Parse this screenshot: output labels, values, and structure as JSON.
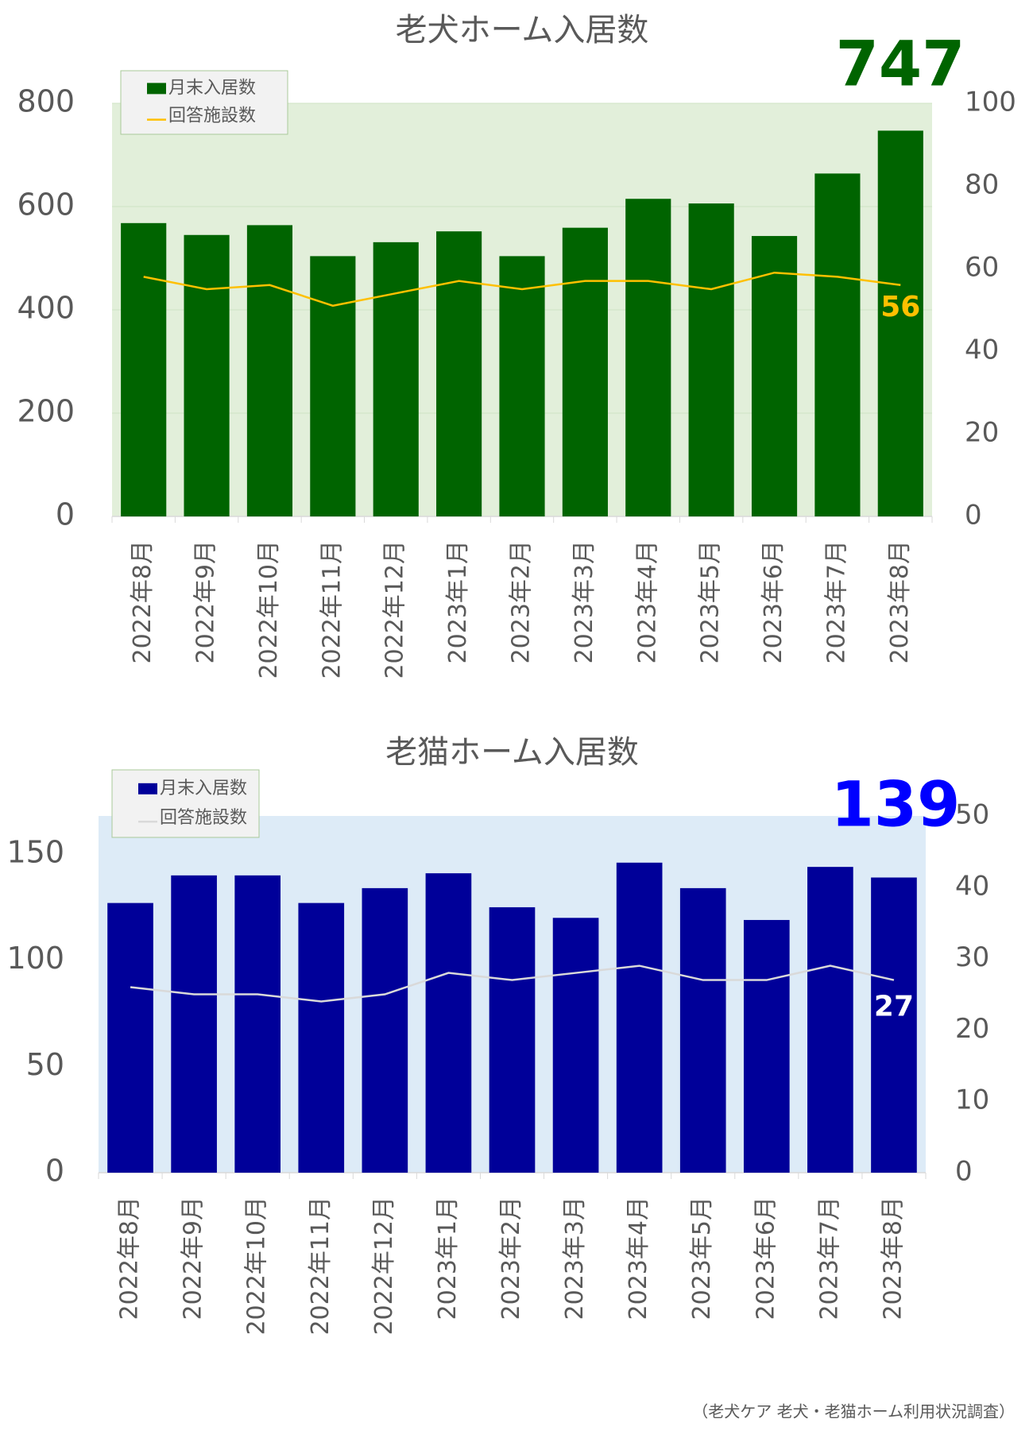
{
  "chart_data": [
    {
      "type": "bar",
      "title": "老犬ホーム入居数",
      "categories": [
        "2022年8月",
        "2022年9月",
        "2022年10月",
        "2022年11月",
        "2022年12月",
        "2023年1月",
        "2023年2月",
        "2023年3月",
        "2023年4月",
        "2023年5月",
        "2023年6月",
        "2023年7月",
        "2023年8月"
      ],
      "series": [
        {
          "name": "月末入居数",
          "type": "bar",
          "color": "#006400",
          "label_color": "#006400",
          "values": [
            568,
            545,
            564,
            504,
            531,
            552,
            504,
            559,
            615,
            606,
            543,
            664,
            747
          ]
        },
        {
          "name": "回答施設数",
          "type": "line",
          "axis": "y2",
          "color": "#ffc000",
          "label_color": "#ffc000",
          "values": [
            58,
            55,
            56,
            51,
            54,
            57,
            55,
            57,
            57,
            55,
            59,
            58,
            56
          ]
        }
      ],
      "ylim": [
        0,
        800
      ],
      "yticks": [
        0,
        200,
        400,
        600,
        800
      ],
      "y2lim": [
        0,
        100
      ],
      "y2ticks": [
        0,
        20,
        40,
        60,
        80,
        100
      ],
      "grid": true,
      "plot_background": "#e2efda"
    },
    {
      "type": "bar",
      "title": "老猫ホーム入居数",
      "categories": [
        "2022年8月",
        "2022年9月",
        "2022年10月",
        "2022年11月",
        "2022年12月",
        "2023年1月",
        "2023年2月",
        "2023年3月",
        "2023年4月",
        "2023年5月",
        "2023年6月",
        "2023年7月",
        "2023年8月"
      ],
      "series": [
        {
          "name": "月末入居数",
          "type": "bar",
          "color": "#000099",
          "label_color": "#0000ff",
          "values": [
            127,
            140,
            140,
            127,
            134,
            141,
            125,
            120,
            146,
            134,
            119,
            144,
            139
          ]
        },
        {
          "name": "回答施設数",
          "type": "line",
          "axis": "y2",
          "color": "#d9d9d9",
          "label_color": "#ffffff",
          "values": [
            26,
            25,
            25,
            24,
            25,
            28,
            27,
            28,
            29,
            27,
            27,
            29,
            27
          ]
        }
      ],
      "ylim": [
        0,
        168
      ],
      "yticks": [
        0,
        50,
        100,
        150
      ],
      "y2lim": [
        0,
        50
      ],
      "y2ticks": [
        0,
        10,
        20,
        30,
        40,
        50
      ],
      "grid": false,
      "plot_background": "#ddebf7"
    }
  ],
  "footnote": "（老犬ケア 老犬・老猫ホーム利用状況調査）"
}
